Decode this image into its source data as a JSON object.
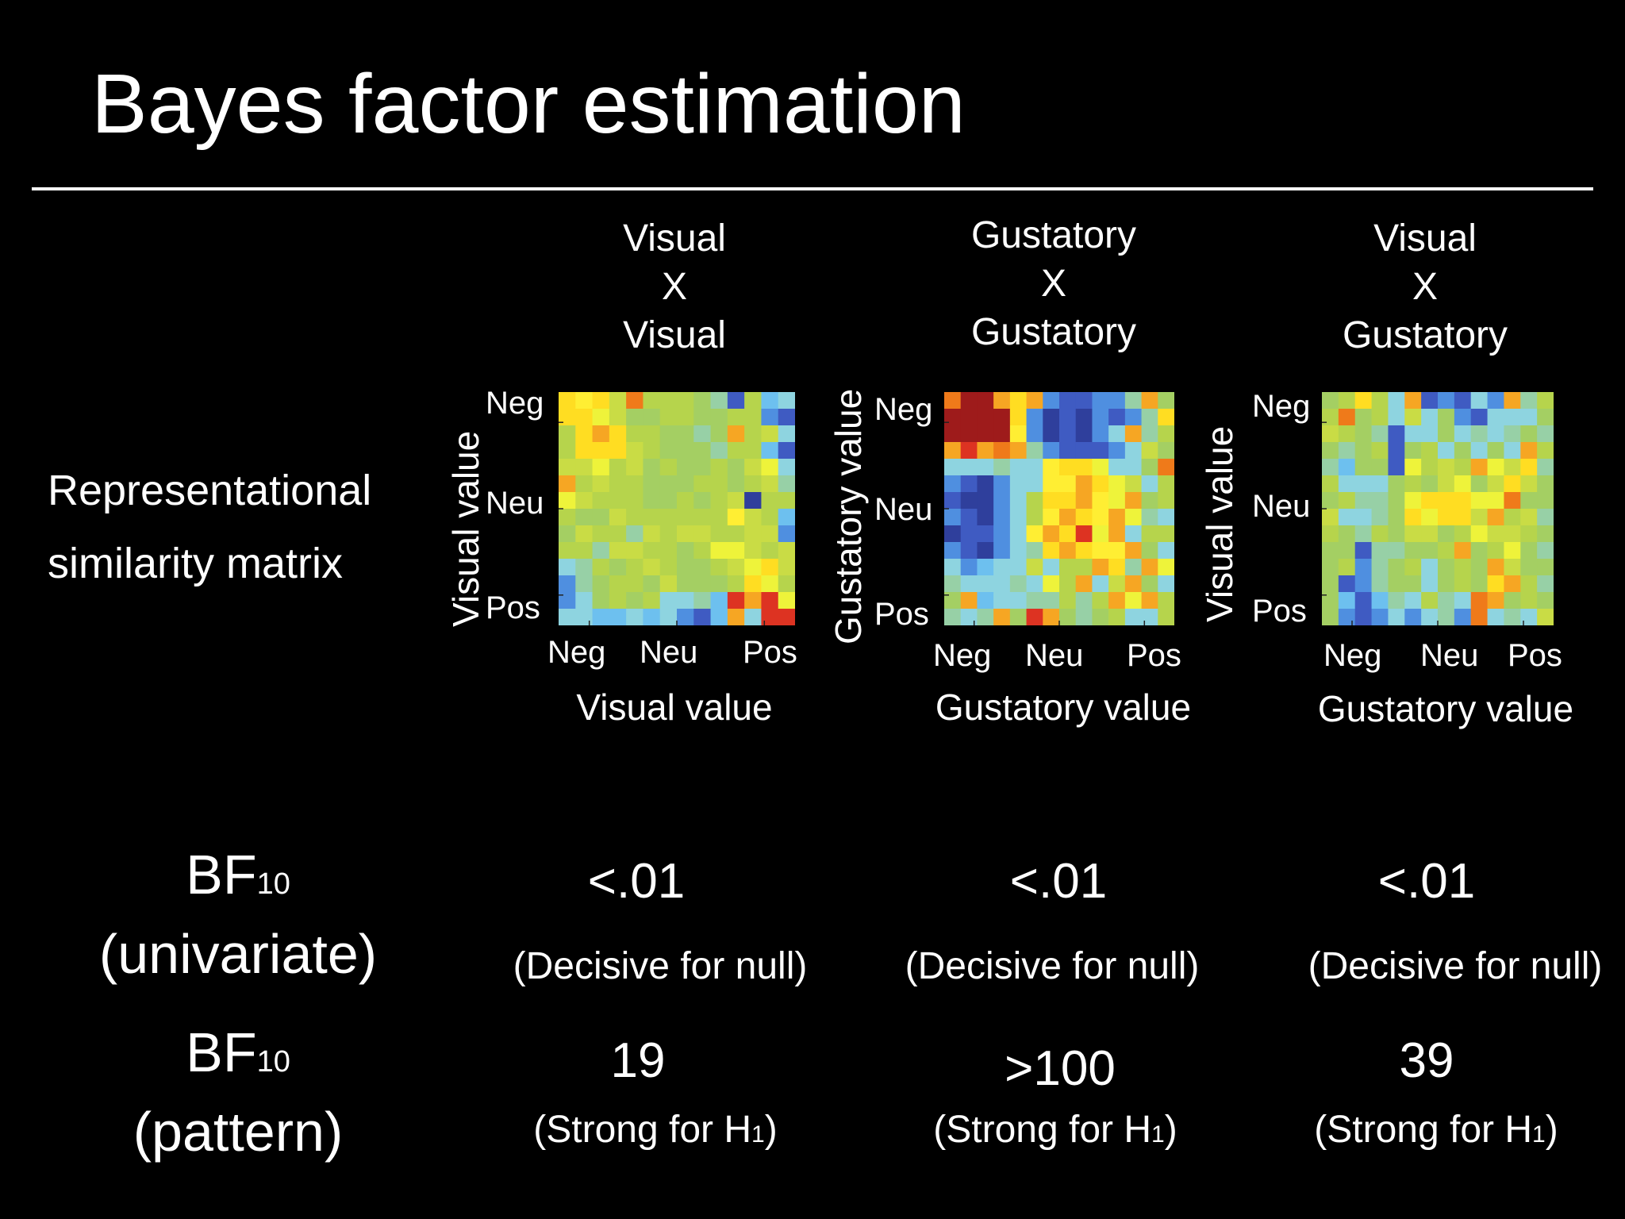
{
  "title": "Bayes factor estimation",
  "row_labels": {
    "rsm": [
      "Representational",
      "similarity matrix"
    ],
    "bf_univariate": {
      "main": "BF",
      "sub": "10",
      "paren": "(univariate)"
    },
    "bf_pattern": {
      "main": "BF",
      "sub": "10",
      "paren": "(pattern)"
    }
  },
  "ticks": {
    "neg": "Neg",
    "neu": "Neu",
    "pos": "Pos"
  },
  "columns": [
    {
      "header": [
        "Visual",
        "X",
        "Visual"
      ],
      "x_axis": "Visual value",
      "y_axis": "Visual value",
      "univariate": {
        "value": "<.01",
        "note": "(Decisive for null)"
      },
      "pattern": {
        "value": "19",
        "note_pre": "(Strong for H",
        "note_sub": "1",
        "note_post": ")"
      }
    },
    {
      "header": [
        "Gustatory",
        "X",
        "Gustatory"
      ],
      "x_axis": "Gustatory value",
      "y_axis": "Gustatory value",
      "univariate": {
        "value": "<.01",
        "note": "(Decisive for null)"
      },
      "pattern": {
        "value": ">100",
        "note_pre": "(Strong for H",
        "note_sub": "1",
        "note_post": ")"
      }
    },
    {
      "header": [
        "Visual",
        "X",
        "Gustatory"
      ],
      "x_axis": "Gustatory value",
      "y_axis": "Visual value",
      "univariate": {
        "value": "<.01",
        "note": "(Decisive for null)"
      },
      "pattern": {
        "value": "39",
        "note_pre": "(Strong for H",
        "note_sub": "1",
        "note_post": ")"
      }
    }
  ],
  "matrix_colors": {
    "0": "#ffdd22",
    "1": "#ffee33",
    "2": "#eef33a",
    "3": "#c9dc45",
    "4": "#b6d44c",
    "5": "#a4cf63",
    "6": "#97d0a6",
    "7": "#8ed4e0",
    "8": "#6dc0ef",
    "9": "#4f8fe0",
    "A": "#3f5bc2",
    "B": "#2f3f9c",
    "C": "#f6a623",
    "D": "#ef7a1a",
    "E": "#dd3322",
    "F": "#9e1b1b"
  },
  "matrices": [
    [
      "0103D44456A487",
      "0023554455449A",
      "40C0445565C437",
      "4000345556448A",
      "33243545545327",
      "C4344555445436",
      "23444554543B44",
      "45534444441348",
      "53446343344339",
      "44633445422343",
      "76454345543203",
      "96544535554024",
      "9754547768ECE2",
      "77887879A8C7EE"
    ],
    [
      "DFFC0C9AA996C5",
      "FFFF09BAB9A960",
      "FFFF19BAB97C64",
      "CECDC69AAA9735",
      "7776771002775D",
      "9AB97711C02374",
      "ABB97400C12C54",
      "9AB9741C01C267",
      "BAA971C0E2C744",
      "9AB9760C011C57",
      "798773744C06C2",
      "67776724C73C57",
      "5C87766464C2C4",
      "676C5EC5654774"
    ],
    [
      "54047CA9A79C64",
      "4D5473759A7775",
      "3456A775767656",
      "5654A5475757C4",
      "6855A2434C2306",
      "47775453253035",
      "54665200022D55",
      "3776502003C436",
      "45645335423345",
      "55A66554C54256",
      "5496547545C355",
      "5A965575450C46",
      "58A867467DC545",
      "59A979769D7673"
    ]
  ]
}
